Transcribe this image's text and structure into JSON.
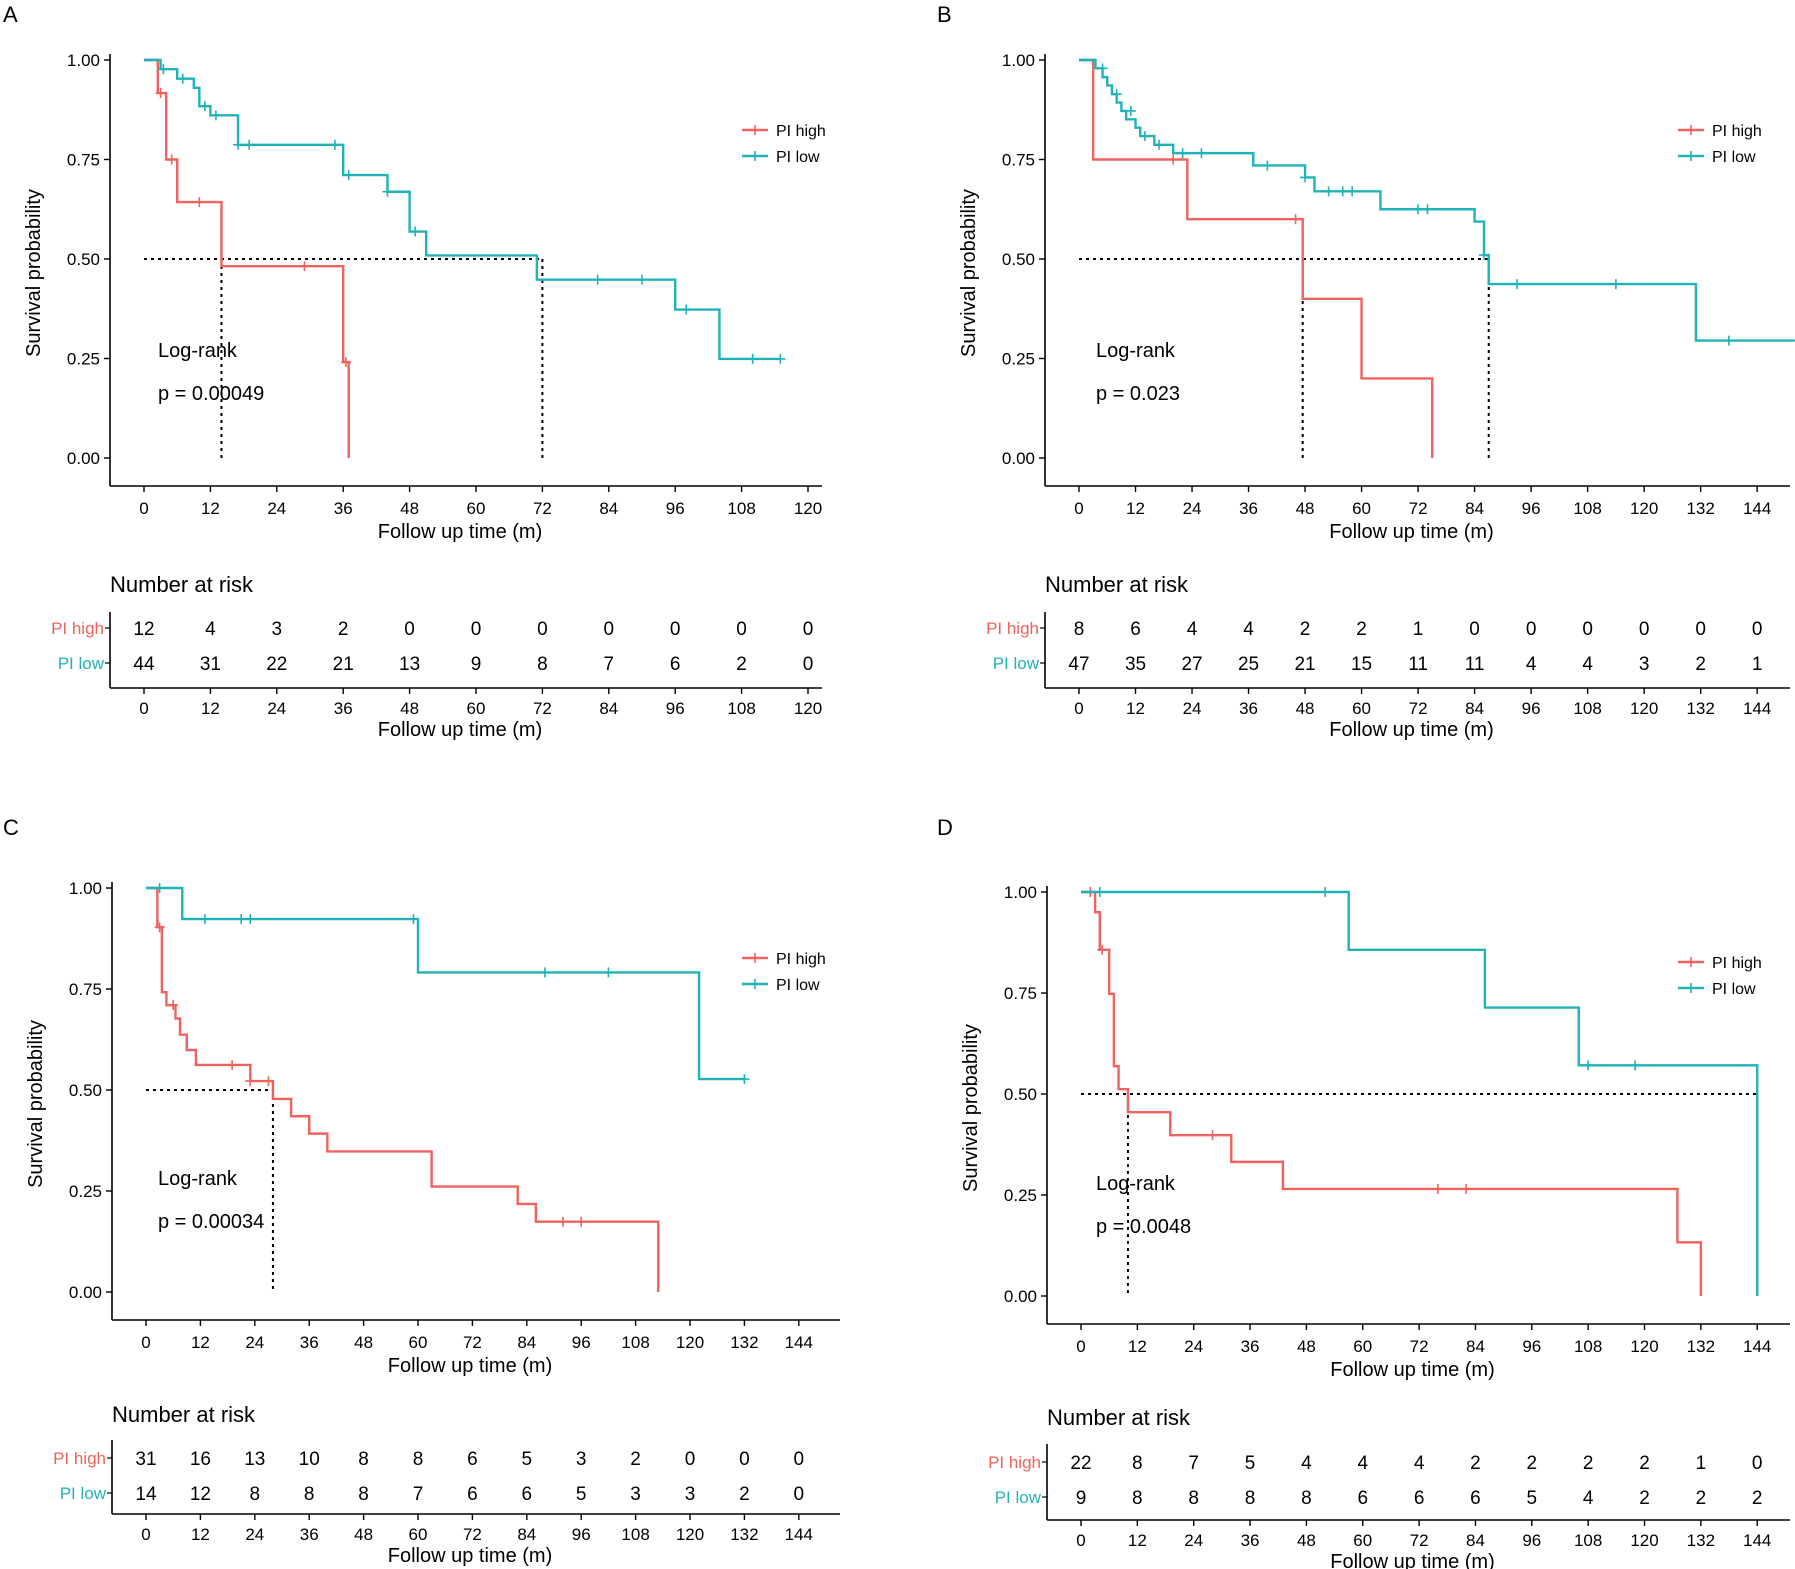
{
  "figure": {
    "x_label": "Follow up time (m)",
    "y_label": "Survival probability",
    "risk_title": "Number at risk",
    "colors": {
      "high": "#f0625d",
      "low": "#1fb3b8",
      "axis": "#000000",
      "median": "#000000"
    }
  },
  "chart_data": [
    {
      "panel": "A",
      "type": "line",
      "subtype": "kaplan-meier",
      "xlim": [
        0,
        120
      ],
      "xticks": [
        0,
        12,
        24,
        36,
        48,
        60,
        72,
        84,
        96,
        108,
        120
      ],
      "ylim": [
        0,
        1
      ],
      "yticks": [
        "0.00",
        "0.25",
        "0.50",
        "0.75",
        "1.00"
      ],
      "ylabel": "Survival probability",
      "xlabel": "Follow up time (m)",
      "annotation": {
        "line1": "Log-rank",
        "line2": "p = 0.00049"
      },
      "median_lines": [
        14,
        72
      ],
      "series": [
        {
          "name": "PI high",
          "color": "#f0625d",
          "steps": [
            [
              0,
              1
            ],
            [
              2.5,
              0.917
            ],
            [
              4,
              0.75
            ],
            [
              6,
              0.643
            ],
            [
              14,
              0.482
            ],
            [
              36,
              0.241
            ],
            [
              37,
              0
            ]
          ],
          "censors": [
            [
              3,
              0.917
            ],
            [
              5,
              0.75
            ],
            [
              10,
              0.643
            ],
            [
              29,
              0.482
            ],
            [
              36.5,
              0.241
            ]
          ]
        },
        {
          "name": "PI low",
          "color": "#1fb3b8",
          "steps": [
            [
              0,
              1
            ],
            [
              3,
              0.977
            ],
            [
              6,
              0.953
            ],
            [
              9,
              0.93
            ],
            [
              10,
              0.884
            ],
            [
              12,
              0.861
            ],
            [
              17,
              0.787
            ],
            [
              36,
              0.711
            ],
            [
              44,
              0.669
            ],
            [
              48,
              0.569
            ],
            [
              51,
              0.509
            ],
            [
              71,
              0.448
            ],
            [
              96,
              0.373
            ],
            [
              104,
              0.249
            ],
            [
              115,
              0.249
            ]
          ],
          "censors": [
            [
              3.5,
              0.977
            ],
            [
              7,
              0.953
            ],
            [
              11,
              0.884
            ],
            [
              13,
              0.861
            ],
            [
              17,
              0.787
            ],
            [
              19,
              0.787
            ],
            [
              34.5,
              0.787
            ],
            [
              37,
              0.711
            ],
            [
              44,
              0.669
            ],
            [
              49,
              0.569
            ],
            [
              82,
              0.448
            ],
            [
              90,
              0.448
            ],
            [
              98,
              0.373
            ],
            [
              110,
              0.249
            ],
            [
              115,
              0.249
            ]
          ]
        }
      ],
      "risk_table": {
        "rows": [
          {
            "label": "PI high",
            "values": [
              "12",
              "4",
              "3",
              "2",
              "0",
              "0",
              "0",
              "0",
              "0",
              "0",
              "0"
            ]
          },
          {
            "label": "PI low",
            "values": [
              "44",
              "31",
              "22",
              "21",
              "13",
              "9",
              "8",
              "7",
              "6",
              "2",
              "0"
            ]
          }
        ]
      }
    },
    {
      "panel": "B",
      "type": "line",
      "subtype": "kaplan-meier",
      "xlim": [
        0,
        148
      ],
      "xticks": [
        0,
        12,
        24,
        36,
        48,
        60,
        72,
        84,
        96,
        108,
        120,
        132,
        144
      ],
      "ylim": [
        0,
        1
      ],
      "yticks": [
        "0.00",
        "0.25",
        "0.50",
        "0.75",
        "1.00"
      ],
      "ylabel": "Survival probability",
      "xlabel": "Follow up time (m)",
      "annotation": {
        "line1": "Log-rank",
        "line2": "p = 0.023"
      },
      "median_lines": [
        47.5,
        87
      ],
      "series": [
        {
          "name": "PI high",
          "color": "#f0625d",
          "steps": [
            [
              0,
              1
            ],
            [
              3,
              0.75
            ],
            [
              23,
              0.6
            ],
            [
              47.5,
              0.4
            ],
            [
              60,
              0.2
            ],
            [
              75,
              0
            ]
          ],
          "censors": [
            [
              20,
              0.75
            ],
            [
              46,
              0.6
            ]
          ]
        },
        {
          "name": "PI low",
          "color": "#1fb3b8",
          "steps": [
            [
              0,
              1
            ],
            [
              3.5,
              0.979
            ],
            [
              5,
              0.957
            ],
            [
              6,
              0.936
            ],
            [
              7,
              0.914
            ],
            [
              8,
              0.893
            ],
            [
              9,
              0.872
            ],
            [
              10,
              0.851
            ],
            [
              12,
              0.83
            ],
            [
              13,
              0.809
            ],
            [
              16,
              0.787
            ],
            [
              20,
              0.766
            ],
            [
              37,
              0.735
            ],
            [
              48,
              0.705
            ],
            [
              50,
              0.67
            ],
            [
              64,
              0.625
            ],
            [
              84,
              0.594
            ],
            [
              86,
              0.51
            ],
            [
              87,
              0.437
            ],
            [
              131,
              0.295
            ],
            [
              152,
              0.295
            ]
          ],
          "censors": [
            [
              5,
              0.979
            ],
            [
              8,
              0.914
            ],
            [
              11,
              0.872
            ],
            [
              14,
              0.809
            ],
            [
              17,
              0.787
            ],
            [
              22,
              0.766
            ],
            [
              26,
              0.766
            ],
            [
              40,
              0.735
            ],
            [
              48,
              0.705
            ],
            [
              53,
              0.67
            ],
            [
              56,
              0.67
            ],
            [
              58,
              0.67
            ],
            [
              72,
              0.625
            ],
            [
              74,
              0.625
            ],
            [
              86,
              0.51
            ],
            [
              93,
              0.437
            ],
            [
              114,
              0.437
            ],
            [
              138,
              0.295
            ]
          ]
        }
      ],
      "risk_table": {
        "rows": [
          {
            "label": "PI high",
            "values": [
              "8",
              "6",
              "4",
              "4",
              "2",
              "2",
              "1",
              "0",
              "0",
              "0",
              "0",
              "0",
              "0"
            ]
          },
          {
            "label": "PI low",
            "values": [
              "47",
              "35",
              "27",
              "25",
              "21",
              "15",
              "11",
              "11",
              "4",
              "4",
              "3",
              "2",
              "1"
            ]
          }
        ]
      }
    },
    {
      "panel": "C",
      "type": "line",
      "subtype": "kaplan-meier",
      "xlim": [
        0,
        150
      ],
      "xticks": [
        0,
        12,
        24,
        36,
        48,
        60,
        72,
        84,
        96,
        108,
        120,
        132,
        144
      ],
      "ylim": [
        0,
        1
      ],
      "yticks": [
        "0.00",
        "0.25",
        "0.50",
        "0.75",
        "1.00"
      ],
      "ylabel": "Survival probability",
      "xlabel": "Follow up time (m)",
      "annotation": {
        "line1": "Log-rank",
        "line2": "p = 0.00034"
      },
      "median_lines": [
        28
      ],
      "series": [
        {
          "name": "PI high",
          "color": "#f0625d",
          "steps": [
            [
              0,
              1
            ],
            [
              2.5,
              0.903
            ],
            [
              3.5,
              0.742
            ],
            [
              4.5,
              0.71
            ],
            [
              6.5,
              0.677
            ],
            [
              7.5,
              0.637
            ],
            [
              9,
              0.599
            ],
            [
              11,
              0.562
            ],
            [
              23,
              0.522
            ],
            [
              28,
              0.478
            ],
            [
              32,
              0.435
            ],
            [
              36,
              0.392
            ],
            [
              40,
              0.348
            ],
            [
              63,
              0.261
            ],
            [
              82,
              0.218
            ],
            [
              86,
              0.174
            ],
            [
              113,
              0
            ]
          ],
          "censors": [
            [
              3,
              0.903
            ],
            [
              6,
              0.71
            ],
            [
              19,
              0.562
            ],
            [
              23,
              0.522
            ],
            [
              27,
              0.522
            ],
            [
              92,
              0.174
            ],
            [
              96,
              0.174
            ]
          ]
        },
        {
          "name": "PI low",
          "color": "#1fb3b8",
          "steps": [
            [
              0,
              1
            ],
            [
              8,
              0.923
            ],
            [
              60,
              0.791
            ],
            [
              122,
              0.527
            ],
            [
              132,
              0.527
            ]
          ],
          "censors": [
            [
              3,
              1
            ],
            [
              13,
              0.923
            ],
            [
              21,
              0.923
            ],
            [
              23,
              0.923
            ],
            [
              59,
              0.923
            ],
            [
              88,
              0.791
            ],
            [
              102,
              0.791
            ],
            [
              132,
              0.527
            ]
          ]
        }
      ],
      "risk_table": {
        "rows": [
          {
            "label": "PI high",
            "values": [
              "31",
              "16",
              "13",
              "10",
              "8",
              "8",
              "6",
              "5",
              "3",
              "2",
              "0",
              "0",
              "0"
            ]
          },
          {
            "label": "PI low",
            "values": [
              "14",
              "12",
              "8",
              "8",
              "8",
              "7",
              "6",
              "6",
              "5",
              "3",
              "3",
              "2",
              "0"
            ]
          }
        ]
      }
    },
    {
      "panel": "D",
      "type": "line",
      "subtype": "kaplan-meier",
      "xlim": [
        0,
        148
      ],
      "xticks": [
        0,
        12,
        24,
        36,
        48,
        60,
        72,
        84,
        96,
        108,
        120,
        132,
        144
      ],
      "ylim": [
        0,
        1
      ],
      "yticks": [
        "0.00",
        "0.25",
        "0.50",
        "0.75",
        "1.00"
      ],
      "ylabel": "Survival probability",
      "xlabel": "Follow up time (m)",
      "annotation": {
        "line1": "Log-rank",
        "line2": "p = 0.0048"
      },
      "median_lines": [
        10,
        144
      ],
      "series": [
        {
          "name": "PI high",
          "color": "#f0625d",
          "steps": [
            [
              0,
              1
            ],
            [
              3,
              0.95
            ],
            [
              4,
              0.857
            ],
            [
              6,
              0.748
            ],
            [
              7,
              0.569
            ],
            [
              8,
              0.512
            ],
            [
              10,
              0.455
            ],
            [
              19,
              0.398
            ],
            [
              32,
              0.332
            ],
            [
              43,
              0.265
            ],
            [
              127,
              0.133
            ],
            [
              132,
              0
            ]
          ],
          "censors": [
            [
              2,
              1
            ],
            [
              4.5,
              0.857
            ],
            [
              28,
              0.398
            ],
            [
              76,
              0.265
            ],
            [
              82,
              0.265
            ]
          ]
        },
        {
          "name": "PI low",
          "color": "#1fb3b8",
          "steps": [
            [
              0,
              1
            ],
            [
              57,
              0.857
            ],
            [
              86,
              0.714
            ],
            [
              106,
              0.571
            ],
            [
              144,
              0
            ]
          ],
          "censors": [
            [
              4,
              1
            ],
            [
              52,
              1
            ],
            [
              108,
              0.571
            ],
            [
              118,
              0.571
            ]
          ]
        }
      ],
      "risk_table": {
        "rows": [
          {
            "label": "PI high",
            "values": [
              "22",
              "8",
              "7",
              "5",
              "4",
              "4",
              "4",
              "2",
              "2",
              "2",
              "2",
              "1",
              "0"
            ]
          },
          {
            "label": "PI low",
            "values": [
              "9",
              "8",
              "8",
              "8",
              "8",
              "6",
              "6",
              "6",
              "5",
              "4",
              "2",
              "2",
              "2"
            ]
          }
        ]
      }
    }
  ]
}
